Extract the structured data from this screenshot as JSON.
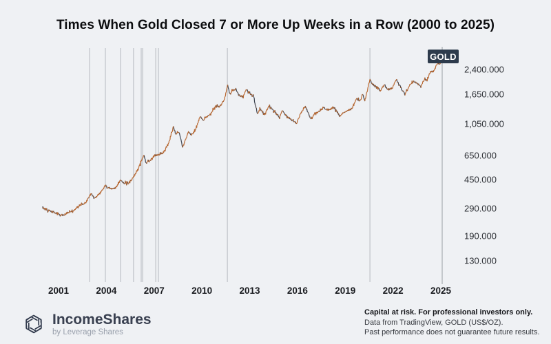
{
  "title": "Times When Gold Closed 7 or More Up Weeks in a Row (2000 to 2025)",
  "symbol_badge": "GOLD",
  "colors": {
    "background": "#eff1f4",
    "up_bar": "#b9672f",
    "down_bar": "#3a414d",
    "event_line": "#b6b9bf",
    "axis_line": "#9a9ea5",
    "badge_bg": "#2d3b4c",
    "badge_text": "#ffffff"
  },
  "chart_data": {
    "type": "line",
    "title": "Times When Gold Closed 7 or More Up Weeks in a Row (2000 to 2025)",
    "series_name": "GOLD",
    "unit": "US$/OZ",
    "x_axis": {
      "tick_years": [
        2001,
        2004,
        2007,
        2010,
        2013,
        2016,
        2019,
        2022,
        2025
      ],
      "tick_labels": [
        "2001",
        "2004",
        "2007",
        "2010",
        "2013",
        "2016",
        "2019",
        "2022",
        "2025"
      ],
      "range": [
        2000.0,
        2025.4
      ]
    },
    "y_axis": {
      "scale": "log",
      "tick_values": [
        2400,
        1650,
        1050,
        650,
        450,
        290,
        190,
        130
      ],
      "tick_labels": [
        "2,400.000",
        "1,650.000",
        "1,050.000",
        "650.000",
        "450.000",
        "290.000",
        "190.000",
        "130.000"
      ]
    },
    "event_lines": {
      "meaning": "week when gold closed 7 or more up weeks in a row",
      "years": [
        2002.95,
        2003.94,
        2004.89,
        2005.71,
        2006.19,
        2006.28,
        2007.1,
        2007.27,
        2011.6,
        2020.55
      ]
    },
    "series": [
      {
        "name": "GOLD",
        "points": [
          [
            2000.0,
            293
          ],
          [
            2000.25,
            283
          ],
          [
            2000.6,
            275
          ],
          [
            2000.9,
            268
          ],
          [
            2001.25,
            258
          ],
          [
            2001.6,
            272
          ],
          [
            2001.9,
            277
          ],
          [
            2002.3,
            302
          ],
          [
            2002.7,
            315
          ],
          [
            2003.05,
            362
          ],
          [
            2003.25,
            335
          ],
          [
            2003.6,
            363
          ],
          [
            2003.95,
            410
          ],
          [
            2004.1,
            398
          ],
          [
            2004.35,
            387
          ],
          [
            2004.6,
            395
          ],
          [
            2004.9,
            447
          ],
          [
            2005.1,
            425
          ],
          [
            2005.4,
            428
          ],
          [
            2005.65,
            455
          ],
          [
            2006.0,
            530
          ],
          [
            2006.35,
            650
          ],
          [
            2006.5,
            575
          ],
          [
            2006.75,
            600
          ],
          [
            2006.95,
            635
          ],
          [
            2007.1,
            650
          ],
          [
            2007.4,
            660
          ],
          [
            2007.6,
            680
          ],
          [
            2007.95,
            800
          ],
          [
            2008.2,
            1005
          ],
          [
            2008.35,
            900
          ],
          [
            2008.55,
            930
          ],
          [
            2008.8,
            730
          ],
          [
            2009.15,
            930
          ],
          [
            2009.35,
            890
          ],
          [
            2009.6,
            950
          ],
          [
            2009.9,
            1180
          ],
          [
            2010.1,
            1100
          ],
          [
            2010.35,
            1180
          ],
          [
            2010.5,
            1200
          ],
          [
            2010.9,
            1390
          ],
          [
            2011.1,
            1360
          ],
          [
            2011.4,
            1500
          ],
          [
            2011.62,
            1890
          ],
          [
            2011.75,
            1650
          ],
          [
            2011.95,
            1750
          ],
          [
            2012.15,
            1780
          ],
          [
            2012.4,
            1590
          ],
          [
            2012.6,
            1600
          ],
          [
            2012.8,
            1780
          ],
          [
            2013.0,
            1670
          ],
          [
            2013.25,
            1590
          ],
          [
            2013.5,
            1210
          ],
          [
            2013.65,
            1320
          ],
          [
            2013.95,
            1210
          ],
          [
            2014.2,
            1380
          ],
          [
            2014.5,
            1290
          ],
          [
            2014.85,
            1150
          ],
          [
            2015.05,
            1280
          ],
          [
            2015.3,
            1180
          ],
          [
            2015.5,
            1140
          ],
          [
            2015.95,
            1060
          ],
          [
            2016.2,
            1230
          ],
          [
            2016.5,
            1360
          ],
          [
            2016.85,
            1130
          ],
          [
            2017.1,
            1230
          ],
          [
            2017.3,
            1250
          ],
          [
            2017.65,
            1340
          ],
          [
            2017.95,
            1300
          ],
          [
            2018.3,
            1350
          ],
          [
            2018.65,
            1180
          ],
          [
            2018.95,
            1250
          ],
          [
            2019.2,
            1290
          ],
          [
            2019.4,
            1320
          ],
          [
            2019.7,
            1540
          ],
          [
            2019.95,
            1480
          ],
          [
            2020.1,
            1670
          ],
          [
            2020.22,
            1480
          ],
          [
            2020.55,
            2050
          ],
          [
            2020.7,
            1930
          ],
          [
            2020.9,
            1840
          ],
          [
            2021.05,
            1830
          ],
          [
            2021.2,
            1720
          ],
          [
            2021.45,
            1900
          ],
          [
            2021.7,
            1760
          ],
          [
            2021.95,
            1800
          ],
          [
            2022.2,
            2040
          ],
          [
            2022.5,
            1820
          ],
          [
            2022.75,
            1640
          ],
          [
            2023.05,
            1890
          ],
          [
            2023.3,
            2010
          ],
          [
            2023.55,
            1930
          ],
          [
            2023.75,
            1840
          ],
          [
            2023.95,
            2060
          ],
          [
            2024.15,
            2030
          ],
          [
            2024.35,
            2330
          ],
          [
            2024.55,
            2330
          ],
          [
            2024.8,
            2650
          ],
          [
            2024.95,
            2620
          ],
          [
            2025.05,
            2680
          ]
        ]
      }
    ]
  },
  "footer": {
    "logo_name": "IncomeShares",
    "logo_sub": "by Leverage Shares",
    "disclaimer_line1": "Capital at risk. For professional investors only.",
    "disclaimer_line2": "Data from TradingView, GOLD (US$/OZ).",
    "disclaimer_line3": "Past performance does not guarantee future results."
  }
}
